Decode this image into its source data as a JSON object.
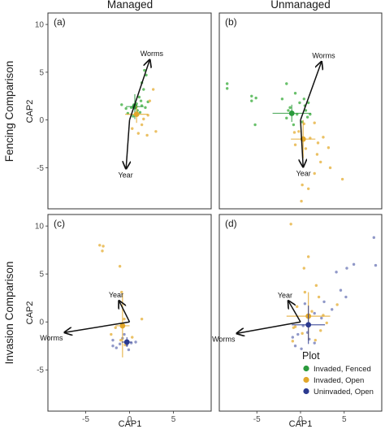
{
  "chart_data": {
    "type": "scatter",
    "columns": [
      "Managed",
      "Unmanaged"
    ],
    "rows": [
      "Fencing Comparison",
      "Invasion Comparison"
    ],
    "xlabel": "CAP1",
    "ylabel": "CAP2",
    "xlim": [
      -9.3,
      9.3
    ],
    "ylim": [
      -9.3,
      11.2
    ],
    "x_ticks": [
      -5,
      0,
      5
    ],
    "y_ticks": [
      -5,
      0,
      5,
      10
    ],
    "legend": {
      "title": "Plot",
      "placement": "inside bottom-right",
      "entries": [
        {
          "key": "fenced",
          "label": "Invaded, Fenced",
          "color": "#2a9a3c"
        },
        {
          "key": "open",
          "label": "Invaded, Open",
          "color": "#e2a72a"
        },
        {
          "key": "uninvaded",
          "label": "Uninvaded, Open",
          "color": "#2b3a8f"
        }
      ]
    },
    "colors": {
      "fenced_point": "#4db550",
      "open_point": "#e8b64a",
      "uninvaded_point": "#7c86be",
      "arrow": "#111111",
      "panel_border": "#333333"
    },
    "panels": [
      {
        "tag": "(a)",
        "row": 0,
        "col": 0,
        "arrows": [
          {
            "label": "Worms",
            "x": 2.3,
            "y": 6.3
          },
          {
            "label": "Year",
            "x": -0.4,
            "y": -5.1
          }
        ],
        "centroids": [
          {
            "group": "fenced",
            "x": 0.6,
            "y": 1.4,
            "xerr": 1.0,
            "yerr": 1.3
          },
          {
            "group": "open",
            "x": 0.8,
            "y": 0.6,
            "xerr": 1.3,
            "yerr": 0.9
          }
        ],
        "points": {
          "fenced": [
            [
              1.7,
              5.2
            ],
            [
              1.9,
              4.7
            ],
            [
              1.4,
              3.9
            ],
            [
              1.6,
              3.2
            ],
            [
              1.1,
              2.4
            ],
            [
              1.3,
              2.0
            ],
            [
              0.8,
              1.7
            ],
            [
              0.5,
              1.6
            ],
            [
              1.4,
              1.5
            ],
            [
              1.8,
              1.3
            ],
            [
              0.2,
              1.3
            ],
            [
              -0.4,
              1.2
            ],
            [
              0.9,
              1.0
            ],
            [
              -0.9,
              1.6
            ],
            [
              1.2,
              0.8
            ],
            [
              -0.2,
              0.7
            ],
            [
              2.1,
              1.9
            ],
            [
              0.4,
              0.4
            ]
          ],
          "open": [
            [
              2.3,
              2.0
            ],
            [
              2.1,
              0.5
            ],
            [
              3.0,
              -1.2
            ],
            [
              1.4,
              -0.5
            ],
            [
              0.3,
              -0.9
            ],
            [
              2.0,
              -1.6
            ],
            [
              1.6,
              0.1
            ],
            [
              2.7,
              3.2
            ],
            [
              1.0,
              -1.4
            ]
          ]
        }
      },
      {
        "tag": "(b)",
        "row": 0,
        "col": 1,
        "arrows": [
          {
            "label": "Worms",
            "x": 2.4,
            "y": 6.1
          },
          {
            "label": "Year",
            "x": 0.3,
            "y": -4.9
          }
        ],
        "centroids": [
          {
            "group": "fenced",
            "x": -1.0,
            "y": 0.7,
            "xerr": 2.2,
            "yerr": 0.9
          },
          {
            "group": "open",
            "x": 0.3,
            "y": -2.0,
            "xerr": 1.4,
            "yerr": 2.0
          }
        ],
        "points": {
          "fenced": [
            [
              -8.4,
              3.8
            ],
            [
              -8.4,
              3.3
            ],
            [
              -5.6,
              2.5
            ],
            [
              -5.1,
              2.3
            ],
            [
              -5.6,
              2.0
            ],
            [
              -1.6,
              3.8
            ],
            [
              -0.6,
              2.8
            ],
            [
              0.4,
              2.2
            ],
            [
              -0.1,
              1.8
            ],
            [
              0.5,
              1.5
            ],
            [
              -1.2,
              1.3
            ],
            [
              0.6,
              1.0
            ],
            [
              -0.4,
              0.6
            ],
            [
              0.8,
              0.3
            ],
            [
              -1.6,
              0.2
            ],
            [
              0.2,
              -0.2
            ],
            [
              -0.8,
              -0.5
            ],
            [
              1.1,
              0.6
            ],
            [
              -5.2,
              -0.5
            ],
            [
              -1.4,
              1.0
            ],
            [
              0.9,
              1.8
            ],
            [
              -2.1,
              2.2
            ]
          ],
          "open": [
            [
              0.4,
              -0.4
            ],
            [
              1.6,
              -0.3
            ],
            [
              -0.2,
              -1.2
            ],
            [
              1.1,
              -1.9
            ],
            [
              2.6,
              -1.8
            ],
            [
              3.2,
              -2.9
            ],
            [
              -0.6,
              -2.6
            ],
            [
              0.6,
              -3.0
            ],
            [
              1.9,
              -3.6
            ],
            [
              2.3,
              -4.4
            ],
            [
              3.4,
              -5.0
            ],
            [
              1.6,
              -5.6
            ],
            [
              4.8,
              -6.2
            ],
            [
              0.2,
              -6.8
            ],
            [
              0.9,
              -7.2
            ],
            [
              0.1,
              -8.5
            ],
            [
              -0.7,
              -1.3
            ],
            [
              2.0,
              -2.4
            ]
          ]
        }
      },
      {
        "tag": "(c)",
        "row": 1,
        "col": 0,
        "arrows": [
          {
            "label": "Year",
            "x": -1.2,
            "y": 2.2
          },
          {
            "label": "Worms",
            "x": -7.4,
            "y": -1.1
          }
        ],
        "centroids": [
          {
            "group": "open",
            "x": -0.8,
            "y": -0.4,
            "xerr": 0.8,
            "yerr": 3.3
          },
          {
            "group": "uninvaded",
            "x": -0.3,
            "y": -2.1,
            "xerr": 0.6,
            "yerr": 0.5
          }
        ],
        "points": {
          "open": [
            [
              -3.4,
              8.0
            ],
            [
              -3.0,
              7.9
            ],
            [
              -3.1,
              7.4
            ],
            [
              -1.1,
              5.8
            ],
            [
              -0.9,
              3.1
            ],
            [
              -0.6,
              0.3
            ],
            [
              1.4,
              0.3
            ],
            [
              -1.6,
              -0.6
            ],
            [
              -2.1,
              -1.3
            ],
            [
              -1.0,
              -1.9
            ],
            [
              -0.5,
              -2.4
            ],
            [
              0.3,
              -1.6
            ]
          ],
          "uninvaded": [
            [
              0.2,
              -2.2
            ],
            [
              -0.3,
              -2.4
            ],
            [
              -1.1,
              -2.3
            ],
            [
              -0.8,
              -1.7
            ],
            [
              -1.9,
              -1.9
            ],
            [
              -1.5,
              -2.7
            ],
            [
              0.7,
              -2.1
            ],
            [
              -0.1,
              -2.9
            ],
            [
              -0.6,
              -1.3
            ],
            [
              -1.9,
              -2.5
            ]
          ]
        }
      },
      {
        "tag": "(d)",
        "row": 1,
        "col": 1,
        "arrows": [
          {
            "label": "Year",
            "x": -1.4,
            "y": 2.2
          },
          {
            "label": "Worms",
            "x": -7.3,
            "y": -1.2
          }
        ],
        "centroids": [
          {
            "group": "open",
            "x": 0.9,
            "y": 0.6,
            "xerr": 2.5,
            "yerr": 2.5
          },
          {
            "group": "uninvaded",
            "x": 0.9,
            "y": -0.3,
            "xerr": 1.9,
            "yerr": 2.0
          }
        ],
        "points": {
          "open": [
            [
              -1.1,
              10.2
            ],
            [
              0.9,
              6.8
            ],
            [
              0.4,
              5.6
            ],
            [
              1.8,
              3.8
            ],
            [
              0.5,
              3.1
            ],
            [
              2.1,
              2.6
            ],
            [
              -0.4,
              1.6
            ],
            [
              1.3,
              1.1
            ],
            [
              2.6,
              0.7
            ],
            [
              3.0,
              -0.1
            ],
            [
              -0.6,
              -0.5
            ],
            [
              0.2,
              -1.2
            ],
            [
              1.7,
              -1.9
            ],
            [
              4.2,
              1.8
            ],
            [
              -0.9,
              -2.0
            ],
            [
              2.3,
              -0.9
            ],
            [
              -0.8,
              -0.6
            ]
          ],
          "uninvaded": [
            [
              8.4,
              8.8
            ],
            [
              6.1,
              6.0
            ],
            [
              5.3,
              5.6
            ],
            [
              4.1,
              5.2
            ],
            [
              8.6,
              5.9
            ],
            [
              4.6,
              3.3
            ],
            [
              5.2,
              2.6
            ],
            [
              3.6,
              1.3
            ],
            [
              2.7,
              2.1
            ],
            [
              0.5,
              1.9
            ],
            [
              1.6,
              0.9
            ],
            [
              2.4,
              0.4
            ],
            [
              0.3,
              -0.4
            ],
            [
              -0.3,
              -1.3
            ],
            [
              1.0,
              -1.8
            ],
            [
              -0.9,
              -1.6
            ],
            [
              1.6,
              -2.2
            ],
            [
              -0.6,
              -2.5
            ],
            [
              0.8,
              -1.1
            ],
            [
              0.1,
              -2.8
            ]
          ]
        }
      }
    ]
  }
}
